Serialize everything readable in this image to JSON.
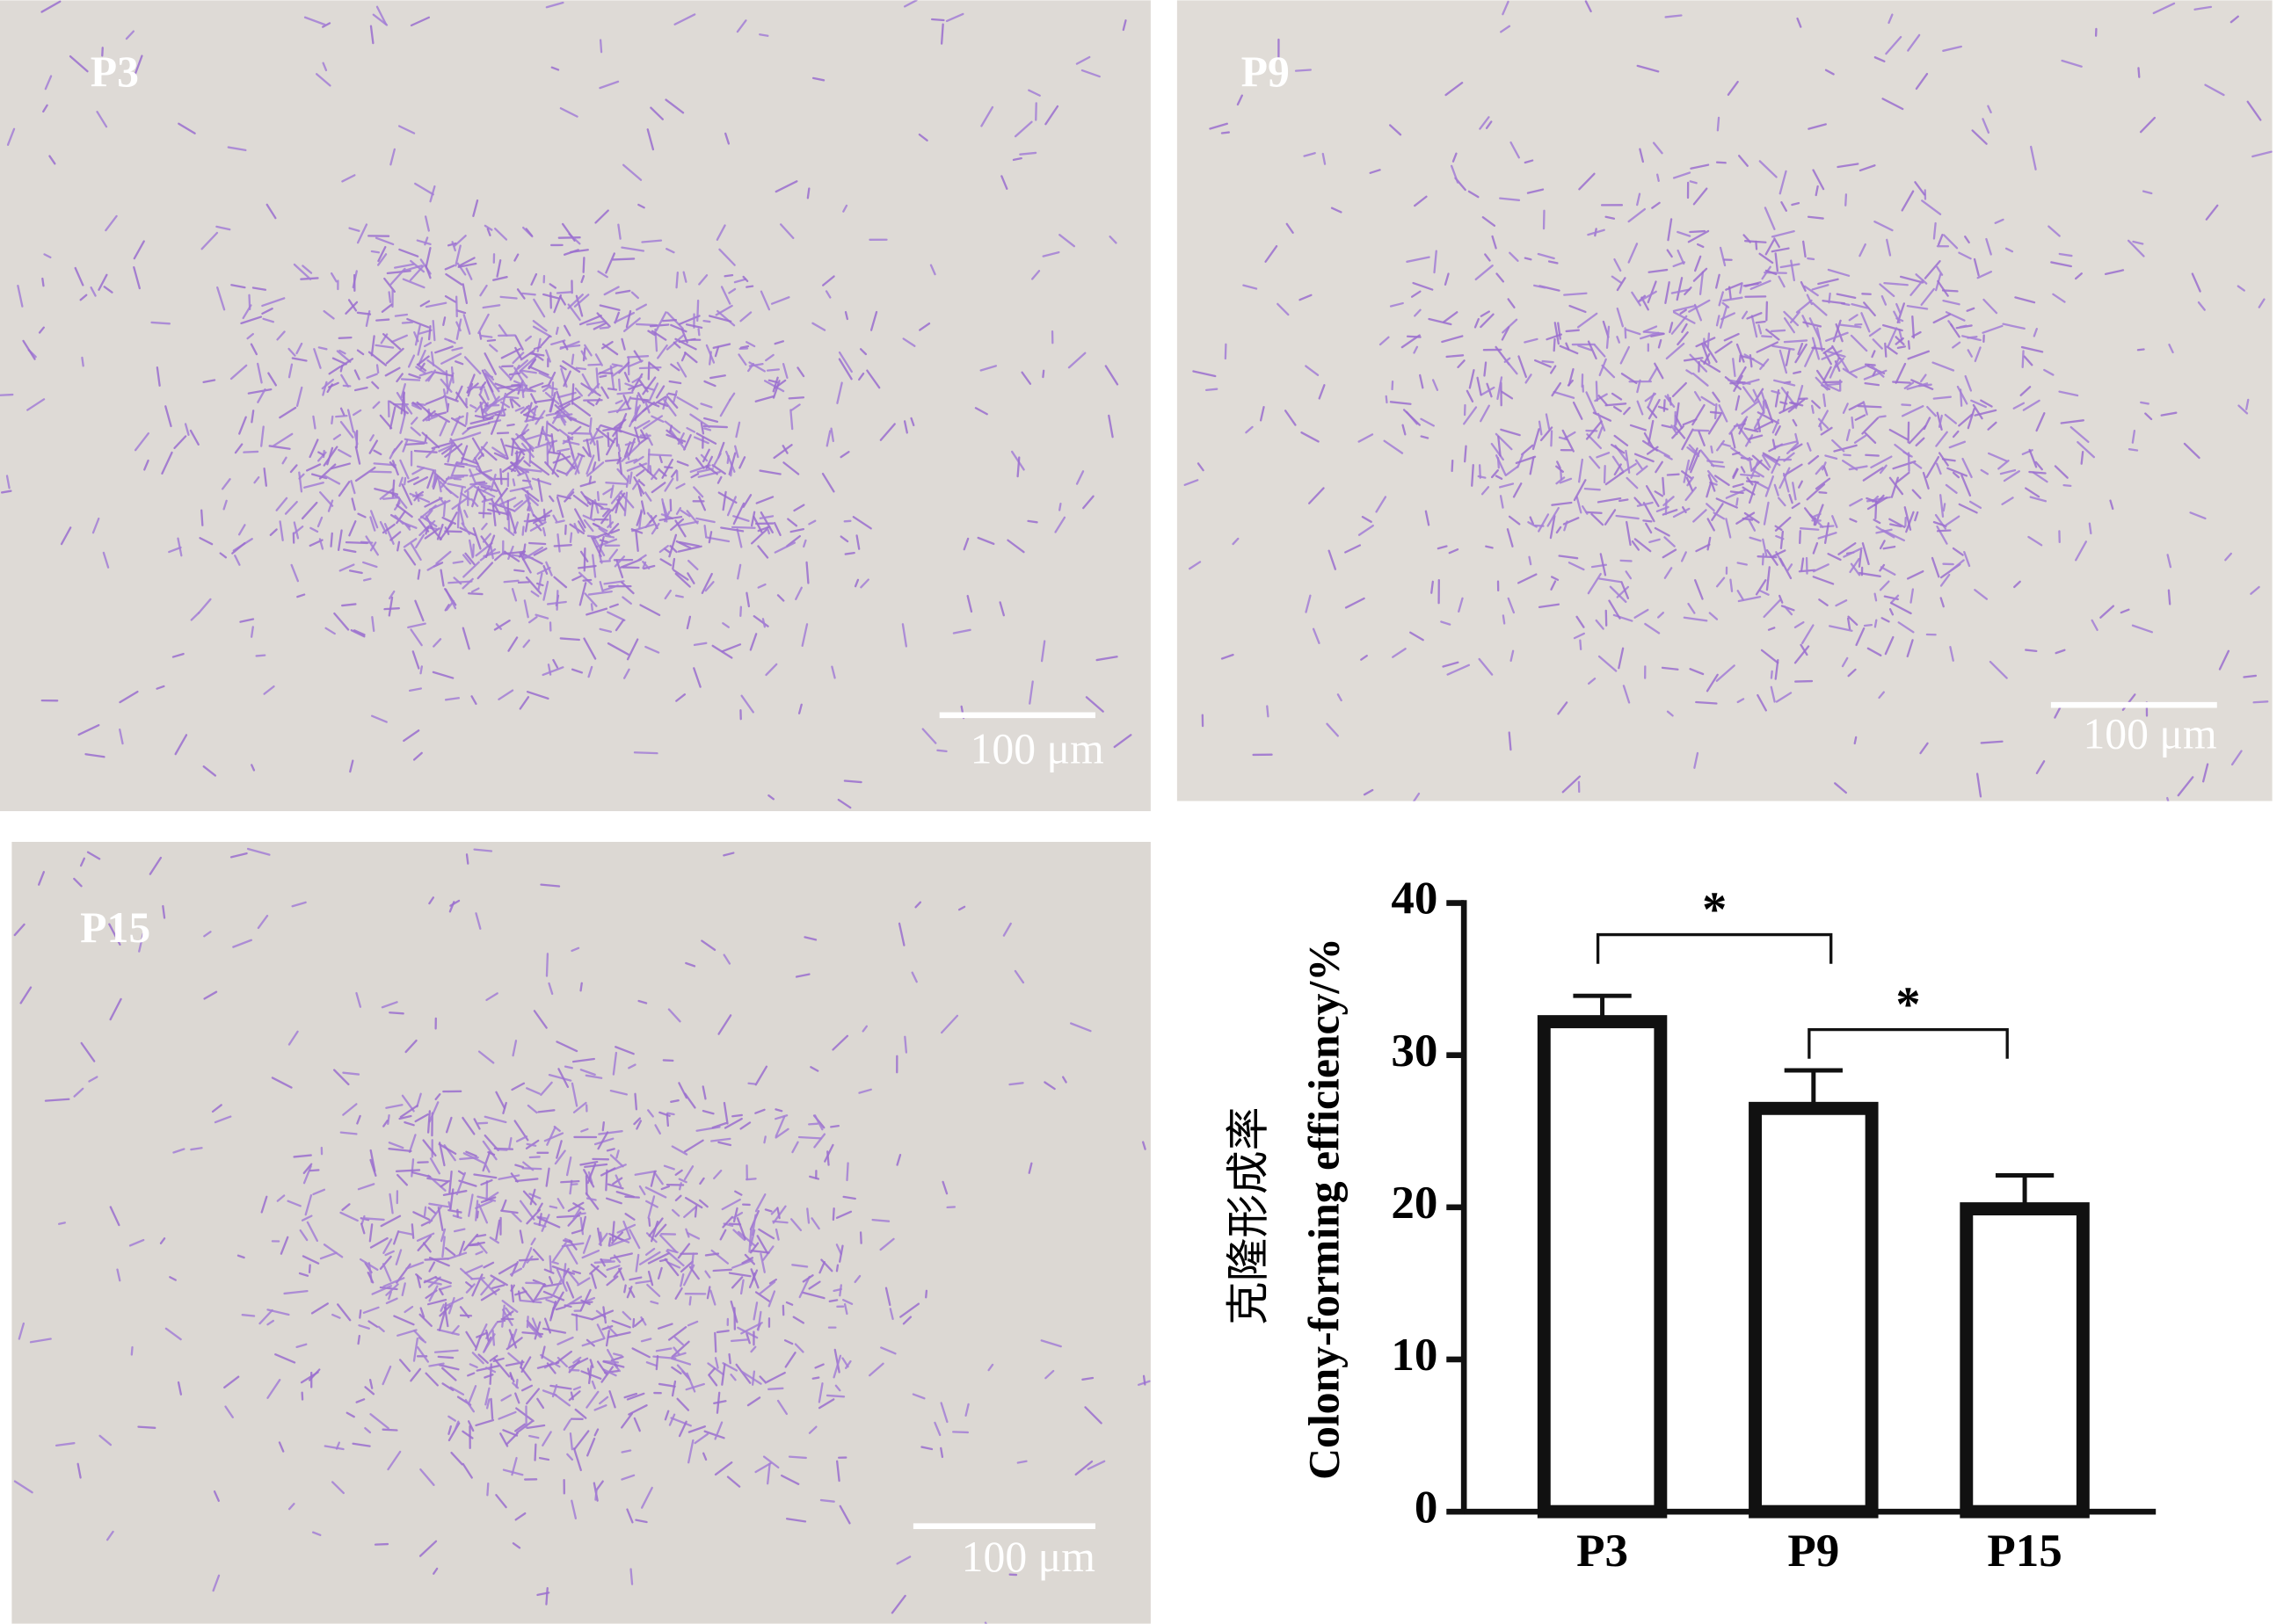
{
  "panels": [
    {
      "label": "P3",
      "scale_bar": "100 μm"
    },
    {
      "label": "P9",
      "scale_bar": "100 μm"
    },
    {
      "label": "P15",
      "scale_bar": "100 μm"
    }
  ],
  "chart_data": {
    "type": "bar",
    "categories": [
      "P3",
      "P9",
      "P15"
    ],
    "values": [
      32.2,
      26.5,
      19.9
    ],
    "errors": [
      1.7,
      2.5,
      2.2
    ],
    "color": "#ffffff",
    "edge_color": "#111111",
    "y_label": [
      "克隆形成率",
      "Colony-forming efficiency/%"
    ],
    "ylim": [
      0,
      40
    ],
    "yticks": [
      0,
      10,
      20,
      30,
      40
    ],
    "annotations": [
      "*",
      "*"
    ]
  }
}
